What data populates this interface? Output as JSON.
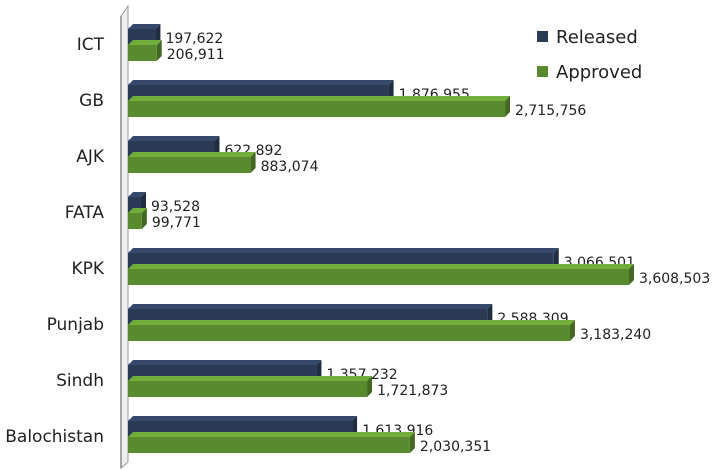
{
  "chart_data": {
    "type": "bar",
    "orientation": "horizontal",
    "style": "3d",
    "categories": [
      "ICT",
      "GB",
      "AJK",
      "FATA",
      "KPK",
      "Punjab",
      "Sindh",
      "Balochistan"
    ],
    "series": [
      {
        "name": "Released",
        "color": "#2b3a55",
        "values": [
          197622,
          1876955,
          622892,
          93528,
          3066501,
          2588309,
          1357232,
          1613916
        ],
        "labels": [
          "197,622",
          "1,876,955",
          "622,892",
          "93,528",
          "3,066,501",
          "2,588,309",
          "1,357,232",
          "1,613,916"
        ]
      },
      {
        "name": "Approved",
        "color": "#5a8a2e",
        "values": [
          206911,
          2715756,
          883074,
          99771,
          3608503,
          3183240,
          1721873,
          2030351
        ],
        "labels": [
          "206,911",
          "2,715,756",
          "883,074",
          "99,771",
          "3,608,503",
          "3,183,240",
          "1,721,873",
          "2,030,351"
        ]
      }
    ],
    "xlim": [
      0,
      3608503
    ],
    "grid": false,
    "legend_position": "top-right"
  }
}
